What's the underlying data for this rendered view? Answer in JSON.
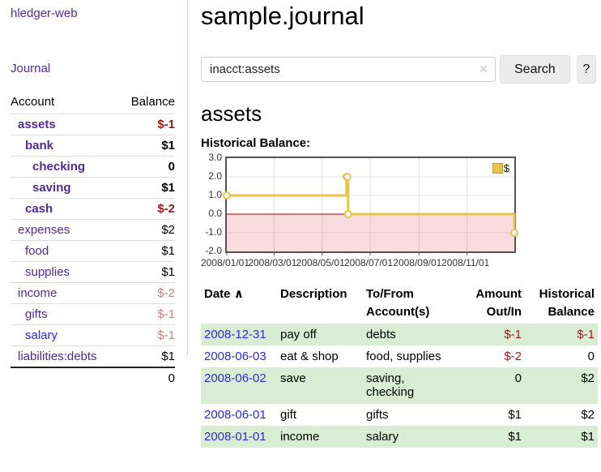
{
  "colors": {
    "link_purple": "#542a8c",
    "link_blue": "#2b2bd7",
    "negative_strong": "#9e1a1a",
    "negative_soft": "#c98383",
    "row_stripe_green": "#d9edd4",
    "chart_line_gold": "#e8c44f",
    "chart_negative_fill": "#fadbde",
    "chart_zero_line": "#a40000"
  },
  "sidebar": {
    "app_title": "hledger-web",
    "journal_link": "Journal",
    "headers": {
      "account": "Account",
      "balance": "Balance"
    },
    "accounts": [
      {
        "name": "assets",
        "depth": 1,
        "bold": true,
        "balance": "$-1",
        "balance_style": "neg-strong",
        "link_style": "purple"
      },
      {
        "name": "bank",
        "depth": 2,
        "bold": true,
        "balance": "$1",
        "balance_style": "normal",
        "link_style": "purple"
      },
      {
        "name": "checking",
        "depth": 3,
        "bold": true,
        "balance": "0",
        "balance_style": "normal",
        "link_style": "purple"
      },
      {
        "name": "saving",
        "depth": 3,
        "bold": true,
        "balance": "$1",
        "balance_style": "normal",
        "link_style": "purple"
      },
      {
        "name": "cash",
        "depth": 2,
        "bold": true,
        "balance": "$-2",
        "balance_style": "neg-strong",
        "link_style": "purple"
      },
      {
        "name": "expenses",
        "depth": 1,
        "bold": false,
        "balance": "$2",
        "balance_style": "normal",
        "link_style": "purple"
      },
      {
        "name": "food",
        "depth": 2,
        "bold": false,
        "balance": "$1",
        "balance_style": "normal",
        "link_style": "purple"
      },
      {
        "name": "supplies",
        "depth": 2,
        "bold": false,
        "balance": "$1",
        "balance_style": "normal",
        "link_style": "purple"
      },
      {
        "name": "income",
        "depth": 1,
        "bold": false,
        "balance": "$-2",
        "balance_style": "neg-soft",
        "link_style": "purple"
      },
      {
        "name": "gifts",
        "depth": 2,
        "bold": false,
        "balance": "$-1",
        "balance_style": "neg-soft",
        "link_style": "purple"
      },
      {
        "name": "salary",
        "depth": 2,
        "bold": false,
        "balance": "$-1",
        "balance_style": "neg-soft",
        "link_style": "blue"
      },
      {
        "name": "liabilities:debts",
        "depth": 1,
        "bold": false,
        "balance": "$1",
        "balance_style": "normal",
        "link_style": "purple"
      }
    ],
    "total": "0"
  },
  "main": {
    "title": "sample.journal",
    "search": {
      "value": "inacct:assets",
      "clear_icon": "✕",
      "button_label": "Search",
      "help_label": "?"
    },
    "account_heading": "assets",
    "chart_title": "Historical Balance:"
  },
  "chart_data": {
    "type": "line",
    "style": "step",
    "title": "Historical Balance",
    "legend": "$",
    "legend_position": "top-right",
    "grid": true,
    "x": [
      "2008-01-01",
      "2008-06-01",
      "2008-06-02",
      "2008-06-03",
      "2008-12-31"
    ],
    "values": [
      1,
      2,
      2,
      0,
      -1
    ],
    "xlim": [
      "2008-01-01",
      "2008-12-31"
    ],
    "ylim": [
      -2,
      3
    ],
    "yticks": [
      "3.0",
      "2.0",
      "1.0",
      "0.0",
      "-1.0",
      "-2.0"
    ],
    "ytick_values": [
      3,
      2,
      1,
      0,
      -1,
      -2
    ],
    "xticks": [
      "2008/01/01",
      "2008/03/01",
      "2008/05/01",
      "2008/07/01",
      "2008/09/01",
      "2008/11/01"
    ],
    "xtick_dates": [
      "2008-01-01",
      "2008-03-01",
      "2008-05-01",
      "2008-07-01",
      "2008-09-01",
      "2008-11-01"
    ]
  },
  "register": {
    "headers": {
      "date": "Date",
      "sort_indicator": "∧",
      "description": "Description",
      "accounts": "To/From Account(s)",
      "amount": "Amount Out/In",
      "balance": "Historical Balance"
    },
    "rows": [
      {
        "date": "2008-12-31",
        "description": "pay off",
        "accounts": "debts",
        "amount": "$-1",
        "balance": "$-1",
        "amount_neg": true,
        "balance_neg": true
      },
      {
        "date": "2008-06-03",
        "description": "eat & shop",
        "accounts": "food, supplies",
        "amount": "$-2",
        "balance": "0",
        "amount_neg": true,
        "balance_neg": false
      },
      {
        "date": "2008-06-02",
        "description": "save",
        "accounts": "saving, checking",
        "amount": "0",
        "balance": "$2",
        "amount_neg": false,
        "balance_neg": false
      },
      {
        "date": "2008-06-01",
        "description": "gift",
        "accounts": "gifts",
        "amount": "$1",
        "balance": "$2",
        "amount_neg": false,
        "balance_neg": false
      },
      {
        "date": "2008-01-01",
        "description": "income",
        "accounts": "salary",
        "amount": "$1",
        "balance": "$1",
        "amount_neg": false,
        "balance_neg": false
      }
    ]
  }
}
